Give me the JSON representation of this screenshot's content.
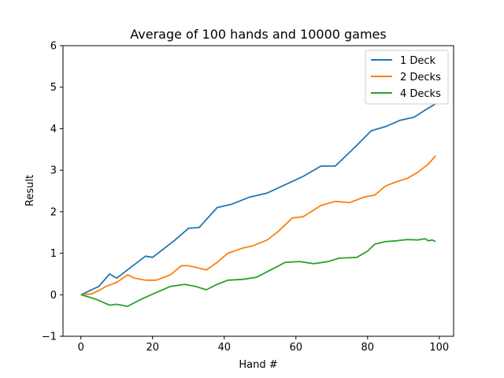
{
  "chart_data": {
    "type": "line",
    "title": "Average of 100 hands and 10000 games",
    "xlabel": "Hand #",
    "ylabel": "Result",
    "xlim": [
      -5,
      104
    ],
    "ylim": [
      -1,
      6
    ],
    "xticks": [
      0,
      20,
      40,
      60,
      80,
      100
    ],
    "yticks": [
      -1,
      0,
      1,
      2,
      3,
      4,
      5,
      6
    ],
    "grid": false,
    "legend_position": "top-right",
    "series": [
      {
        "name": "1 Deck",
        "color": "#1f77b4",
        "x": [
          0,
          5,
          8,
          10,
          13,
          18,
          20,
          23,
          26,
          30,
          33,
          38,
          42,
          47,
          52,
          57,
          62,
          67,
          71,
          77,
          81,
          85,
          89,
          93,
          97,
          99
        ],
        "y": [
          0.0,
          0.2,
          0.5,
          0.4,
          0.6,
          0.93,
          0.9,
          1.1,
          1.3,
          1.6,
          1.62,
          2.1,
          2.18,
          2.35,
          2.45,
          2.65,
          2.85,
          3.1,
          3.1,
          3.6,
          3.95,
          4.05,
          4.2,
          4.28,
          4.5,
          4.6
        ]
      },
      {
        "name": "2 Decks",
        "color": "#ff7f0e",
        "x": [
          0,
          3,
          5,
          7,
          10,
          13,
          15,
          18,
          21,
          25,
          28,
          30,
          35,
          38,
          41,
          45,
          48,
          52,
          55,
          59,
          62,
          67,
          71,
          75,
          79,
          82,
          85,
          88,
          91,
          94,
          97,
          99
        ],
        "y": [
          0.0,
          0.02,
          0.1,
          0.2,
          0.3,
          0.48,
          0.4,
          0.35,
          0.35,
          0.48,
          0.7,
          0.7,
          0.6,
          0.78,
          1.0,
          1.12,
          1.18,
          1.32,
          1.52,
          1.85,
          1.88,
          2.15,
          2.25,
          2.22,
          2.35,
          2.4,
          2.62,
          2.72,
          2.8,
          2.95,
          3.15,
          3.35
        ]
      },
      {
        "name": "4 Decks",
        "color": "#2ca02c",
        "x": [
          0,
          4,
          8,
          10,
          13,
          17,
          21,
          25,
          29,
          32,
          35,
          38,
          41,
          45,
          49,
          53,
          57,
          61,
          65,
          69,
          72,
          77,
          80,
          82,
          85,
          88,
          91,
          94,
          96,
          97,
          98,
          99
        ],
        "y": [
          0.0,
          -0.1,
          -0.25,
          -0.23,
          -0.28,
          -0.1,
          0.05,
          0.2,
          0.25,
          0.2,
          0.12,
          0.25,
          0.35,
          0.37,
          0.42,
          0.6,
          0.78,
          0.8,
          0.75,
          0.8,
          0.88,
          0.9,
          1.05,
          1.22,
          1.28,
          1.3,
          1.33,
          1.32,
          1.35,
          1.3,
          1.32,
          1.28
        ]
      }
    ]
  }
}
